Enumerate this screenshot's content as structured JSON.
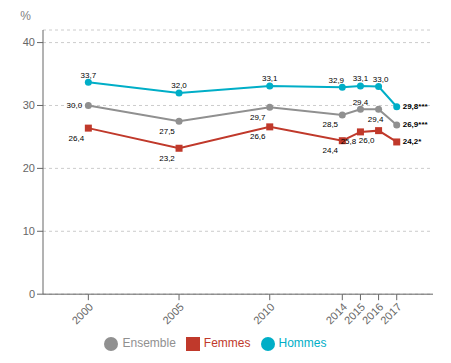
{
  "chart_data": {
    "type": "line",
    "y_label": "%",
    "x": [
      2000,
      2005,
      2010,
      2014,
      2015,
      2016,
      2017
    ],
    "xlim": [
      1997.5,
      2019
    ],
    "xticks": [
      2000,
      2005,
      2010,
      2014,
      2015,
      2016,
      2017
    ],
    "ylim": [
      0,
      42
    ],
    "yticks": [
      0,
      10,
      20,
      30,
      40
    ],
    "grid": true,
    "legend": "bottom",
    "data_labels": true,
    "series": [
      {
        "name": "Hommes",
        "color": "#00aec7",
        "marker": "circle",
        "values": [
          33.7,
          32.0,
          33.1,
          32.9,
          33.1,
          33.0,
          29.8
        ],
        "value_labels": [
          "33,7",
          "32,0",
          "33,1",
          "32,9",
          "33,1",
          "33,0",
          "29,8***"
        ]
      },
      {
        "name": "Femmes",
        "color": "#c0392b",
        "marker": "square",
        "values": [
          26.4,
          23.2,
          26.6,
          24.4,
          25.8,
          26.0,
          24.2
        ],
        "value_labels": [
          "26,4",
          "23,2",
          "26,6",
          "24,4",
          "25,8",
          "26,0",
          "24,2*"
        ]
      },
      {
        "name": "Ensemble",
        "color": "#909090",
        "marker": "circle",
        "values": [
          30.0,
          27.5,
          29.7,
          28.5,
          29.4,
          29.4,
          26.9
        ],
        "value_labels": [
          "30,0",
          "27,5",
          "29,7",
          "28,5",
          "29,4",
          "29,4",
          "26,9***"
        ]
      }
    ]
  }
}
